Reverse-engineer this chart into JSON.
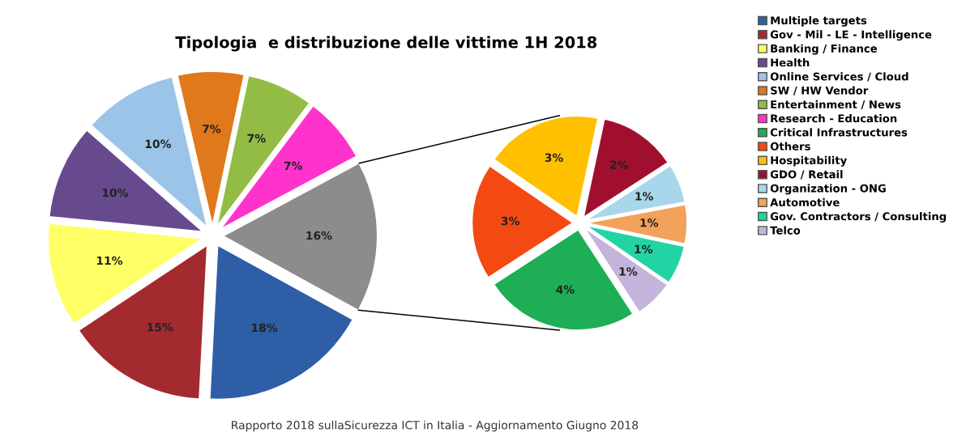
{
  "chart_data": [
    {
      "type": "pie",
      "title": "Tipologia  e distribuzione delle vittime 1H 2018",
      "categories": [
        "Multiple targets",
        "Gov - Mil - LE - Intelligence",
        "Banking / Finance",
        "Health",
        "Online Services / Cloud",
        "SW / HW Vendor",
        "Entertainment / News",
        "Research - Education",
        null
      ],
      "values": [
        18,
        15,
        11,
        10,
        10,
        7,
        7,
        7,
        16
      ],
      "value_labels": [
        "18%",
        "15%",
        "11%",
        "10%",
        "10%",
        "7%",
        "7%",
        "7%",
        "16%"
      ],
      "colors": [
        "#2e5ea6",
        "#a32a2e",
        "#ffff66",
        "#674a8e",
        "#9cc4e8",
        "#e0781c",
        "#92bc44",
        "#ff33cc",
        "#8c8c8c"
      ],
      "legend": "right",
      "annotations": [
        "Rapporto 2018 sullaSicurezza ICT in Italia - Aggiornamento Giugno 2018"
      ]
    },
    {
      "type": "pie",
      "categories": [
        "Critical Infrastructures",
        "Others",
        "Hospitability",
        "GDO / Retail",
        "Organization - ONG",
        "Automotive",
        "Gov. Contractors / Consulting",
        "Telco"
      ],
      "values": [
        4,
        3,
        3,
        2,
        1,
        1,
        1,
        1
      ],
      "value_labels": [
        "4%",
        "3%",
        "3%",
        "2%",
        "1%",
        "1%",
        "1%",
        "1%"
      ],
      "colors": [
        "#1eae55",
        "#f24a12",
        "#ffc000",
        "#a0102e",
        "#a8d6ea",
        "#f2a25a",
        "#22d4a4",
        "#c4b4dc"
      ],
      "legend": "right"
    }
  ]
}
